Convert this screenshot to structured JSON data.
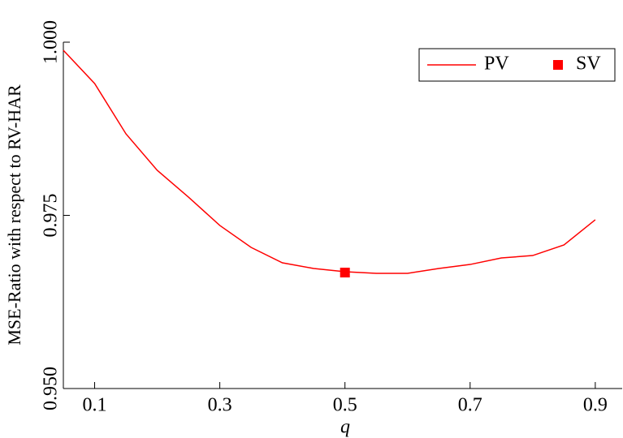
{
  "chart_data": {
    "type": "line",
    "x_label": "q",
    "y_label": "MSE-Ratio with respect to RV-HAR",
    "xlim": [
      0.05,
      0.943
    ],
    "xticks": [
      0.1,
      0.3,
      0.5,
      0.7,
      0.9
    ],
    "ylim": [
      0.95,
      1.0
    ],
    "yticks": [
      {
        "value": 0.95,
        "label": "0.950"
      },
      {
        "value": 0.975,
        "label": "0.975"
      },
      {
        "value": 1.0,
        "label": "1.000"
      }
    ],
    "legend": "upper right",
    "series": [
      {
        "name": "PV",
        "type": "line",
        "color": "#ff0000",
        "x": [
          0.05,
          0.1,
          0.15,
          0.2,
          0.25,
          0.3,
          0.35,
          0.4,
          0.45,
          0.5,
          0.55,
          0.6,
          0.65,
          0.7,
          0.75,
          0.8,
          0.85,
          0.9
        ],
        "values": [
          0.99883,
          0.99403,
          0.98677,
          0.9815,
          0.97763,
          0.97354,
          0.97037,
          0.96815,
          0.96733,
          0.96686,
          0.96663,
          0.96663,
          0.96733,
          0.96791,
          0.96885,
          0.9692,
          0.97073,
          0.97436
        ]
      },
      {
        "name": "SV",
        "type": "scatter",
        "color": "#ff0000",
        "x": [
          0.5
        ],
        "values": [
          0.96674
        ]
      }
    ]
  }
}
